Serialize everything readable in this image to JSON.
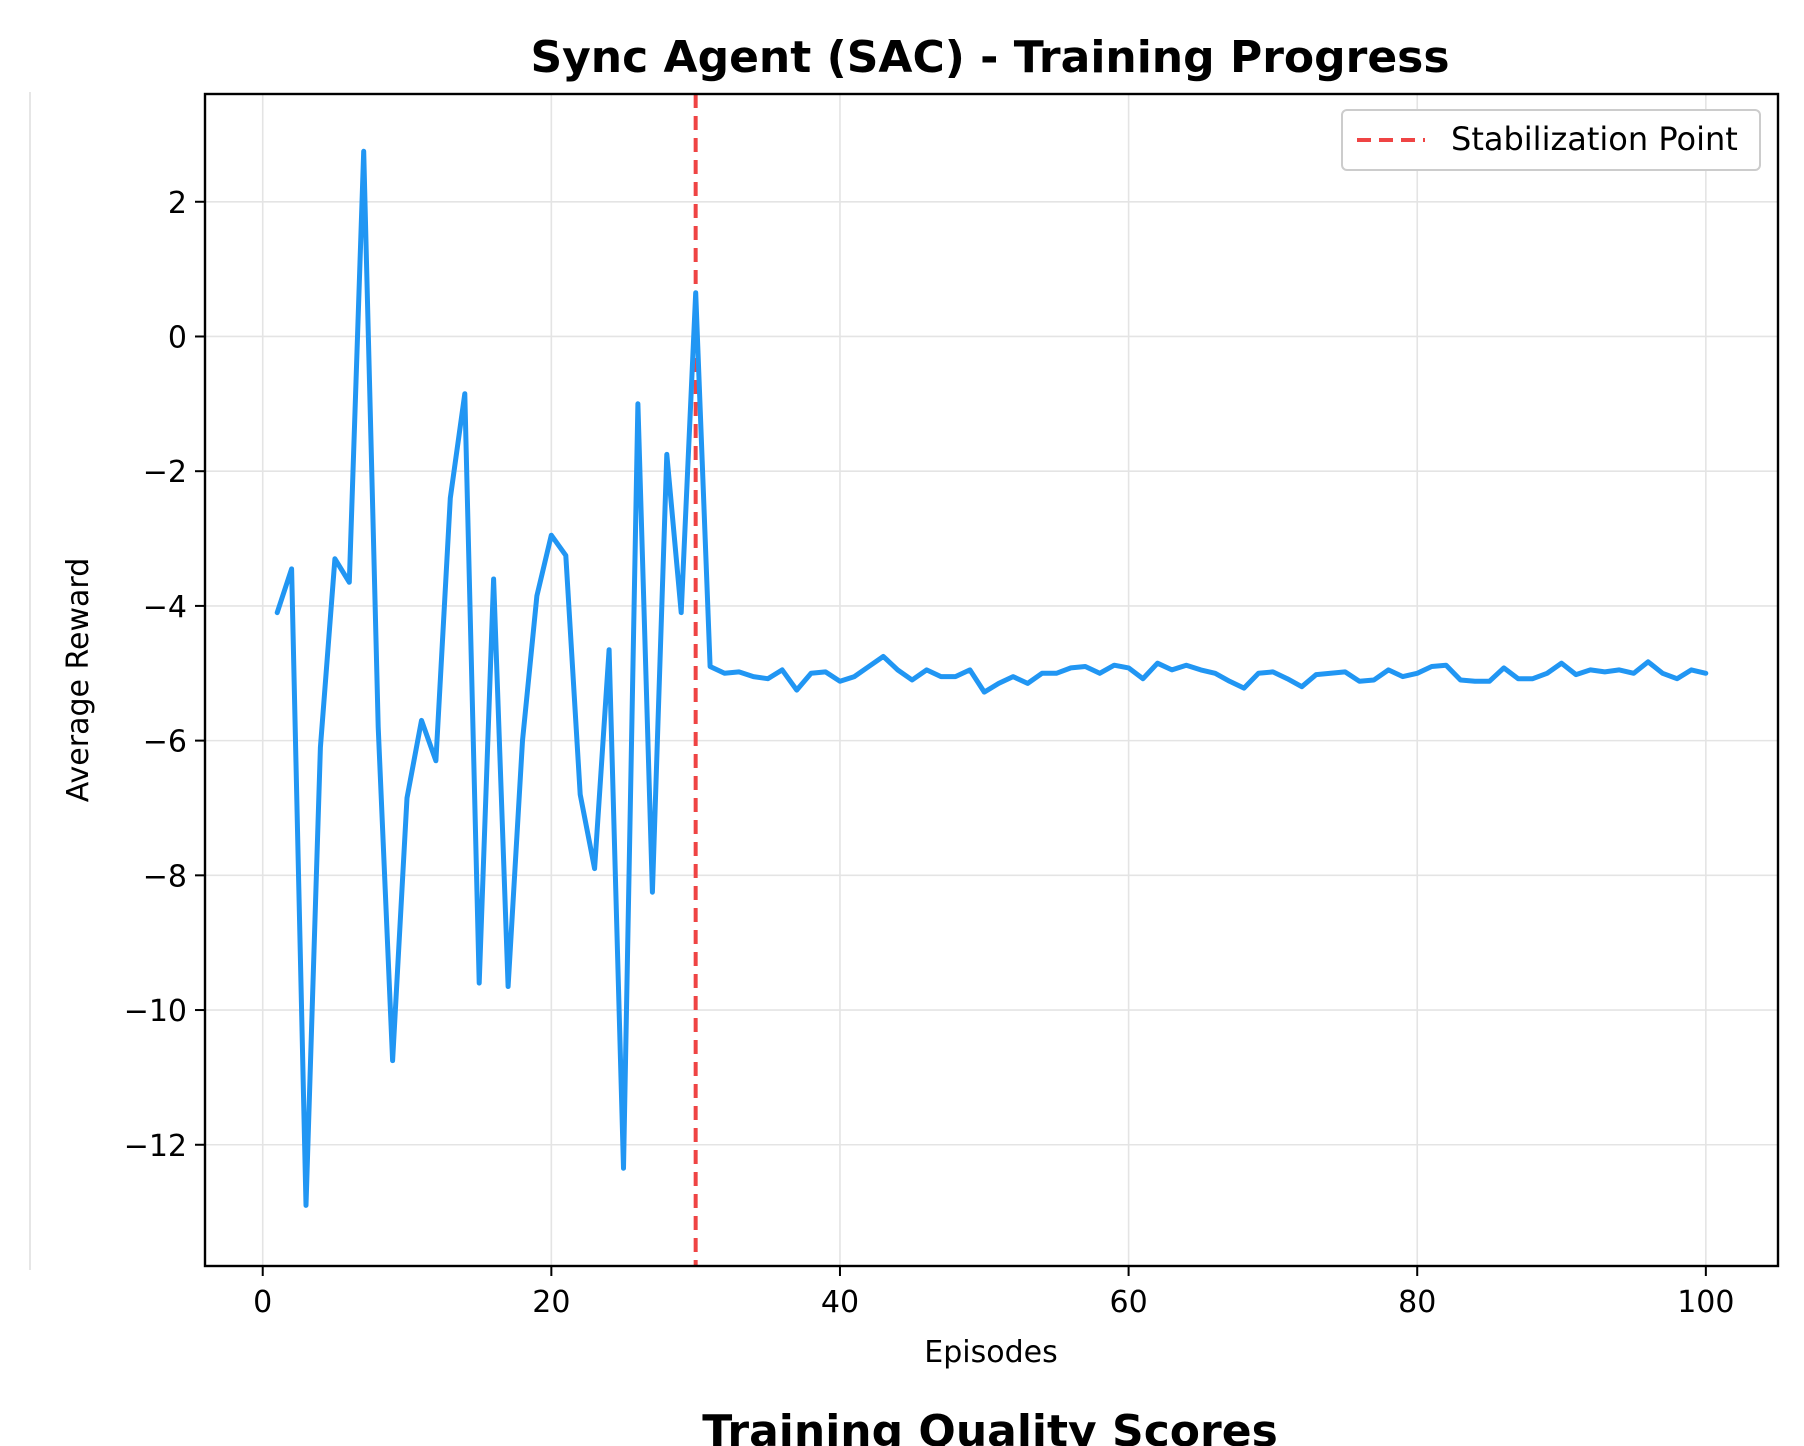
{
  "chart_data": {
    "type": "line",
    "title": "Sync Agent (SAC) - Training Progress",
    "xlabel": "Episodes",
    "ylabel": "Average Reward",
    "xlim": [
      -4,
      105
    ],
    "ylim": [
      -13.8,
      3.6
    ],
    "x_ticks": [
      0,
      20,
      40,
      60,
      80,
      100
    ],
    "x_tick_labels": [
      "0",
      "20",
      "40",
      "60",
      "80",
      "100"
    ],
    "y_ticks": [
      2,
      0,
      -2,
      -4,
      -6,
      -8,
      -10,
      -12
    ],
    "y_tick_labels": [
      "2",
      "0",
      "−2",
      "−4",
      "−6",
      "−8",
      "−10",
      "−12"
    ],
    "grid": true,
    "legend_position": "top-right",
    "colors": {
      "series": "#2196F3",
      "stabilization": "#EF4444"
    },
    "stabilization": {
      "label": "Stabilization Point",
      "x": 30
    },
    "series": [
      {
        "x": [
          1,
          2,
          3,
          4,
          5,
          6,
          7,
          8,
          9,
          10,
          11,
          12,
          13,
          14,
          15,
          16,
          17,
          18,
          19,
          20,
          21,
          22,
          23,
          24,
          25,
          26,
          27,
          28,
          29,
          30,
          31,
          32,
          33,
          34,
          35,
          36,
          37,
          38,
          39,
          40,
          41,
          42,
          43,
          44,
          45,
          46,
          47,
          48,
          49,
          50,
          51,
          52,
          53,
          54,
          55,
          56,
          57,
          58,
          59,
          60,
          61,
          62,
          63,
          64,
          65,
          66,
          67,
          68,
          69,
          70,
          71,
          72,
          73,
          74,
          75,
          76,
          77,
          78,
          79,
          80,
          81,
          82,
          83,
          84,
          85,
          86,
          87,
          88,
          89,
          90,
          91,
          92,
          93,
          94,
          95,
          96,
          97,
          98,
          99,
          100
        ],
        "values": [
          -4.1,
          -3.45,
          -12.9,
          -6.1,
          -3.3,
          -3.65,
          2.75,
          -5.8,
          -10.75,
          -6.85,
          -5.7,
          -6.3,
          -2.4,
          -0.85,
          -9.6,
          -3.6,
          -9.65,
          -6.0,
          -3.85,
          -2.95,
          -3.25,
          -6.8,
          -7.9,
          -4.65,
          -12.35,
          -1.0,
          -8.25,
          -1.75,
          -4.1,
          0.65,
          -4.9,
          -5.0,
          -4.98,
          -5.05,
          -5.08,
          -4.95,
          -5.25,
          -5.0,
          -4.98,
          -5.12,
          -5.05,
          -4.9,
          -4.75,
          -4.95,
          -5.1,
          -4.95,
          -5.05,
          -5.05,
          -4.95,
          -5.28,
          -5.15,
          -5.05,
          -5.15,
          -5.0,
          -5.0,
          -4.92,
          -4.9,
          -5.0,
          -4.88,
          -4.92,
          -5.08,
          -4.85,
          -4.95,
          -4.88,
          -4.95,
          -5.0,
          -5.12,
          -5.22,
          -5.0,
          -4.98,
          -5.08,
          -5.2,
          -5.02,
          -5.0,
          -4.98,
          -5.12,
          -5.1,
          -4.95,
          -5.05,
          -5.0,
          -4.9,
          -4.88,
          -5.1,
          -5.12,
          -5.12,
          -4.92,
          -5.08,
          -5.08,
          -5.0,
          -4.85,
          -5.02,
          -4.95,
          -4.98,
          -4.95,
          -5.0,
          -4.83,
          -5.0,
          -5.08,
          -4.95,
          -5.0
        ]
      }
    ]
  },
  "next_chart_title": "Training Quality Scores"
}
